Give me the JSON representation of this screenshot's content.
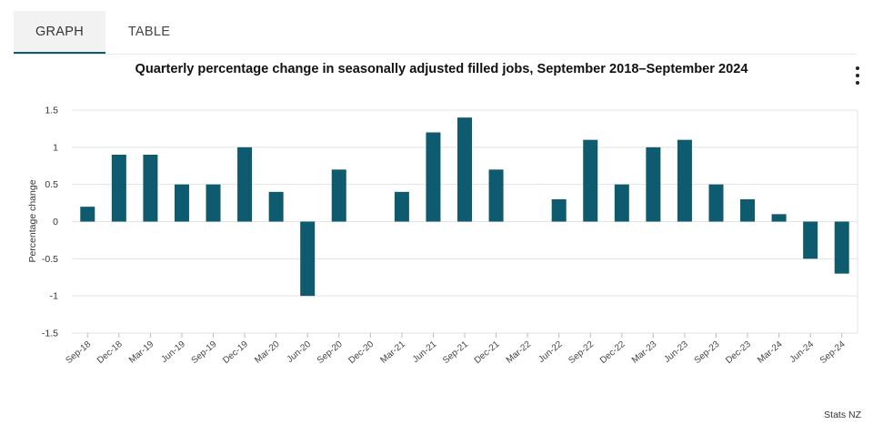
{
  "tabs": [
    {
      "label": "GRAPH",
      "active": true
    },
    {
      "label": "TABLE",
      "active": false
    }
  ],
  "menu_icon": "more-vertical-icon",
  "source": "Stats NZ",
  "colors": {
    "bar": "#0e5a6e",
    "grid": "#e3e3e3",
    "tab_underline": "#0e5a6e"
  },
  "chart_data": {
    "type": "bar",
    "title": "Quarterly percentage change in seasonally adjusted filled jobs, September 2018–September 2024",
    "xlabel": "",
    "ylabel": "Percentage change",
    "ylim": [
      -1.5,
      1.5
    ],
    "yticks": [
      "1.5",
      "1",
      "0.5",
      "0",
      "-0.5",
      "-1",
      "-1.5"
    ],
    "grid": true,
    "categories": [
      "Sep-18",
      "Dec-18",
      "Mar-19",
      "Jun-19",
      "Sep-19",
      "Dec-19",
      "Mar-20",
      "Jun-20",
      "Sep-20",
      "Dec-20",
      "Mar-21",
      "Jun-21",
      "Sep-21",
      "Dec-21",
      "Mar-22",
      "Jun-22",
      "Sep-22",
      "Dec-22",
      "Mar-23",
      "Jun-23",
      "Sep-23",
      "Dec-23",
      "Mar-24",
      "Jun-24",
      "Sep-24"
    ],
    "values": [
      0.2,
      0.9,
      0.9,
      0.5,
      0.5,
      1.0,
      0.4,
      -1.0,
      0.7,
      0.0,
      0.4,
      1.2,
      1.4,
      0.7,
      0.0,
      0.3,
      1.1,
      0.5,
      1.0,
      1.1,
      0.5,
      0.3,
      0.1,
      -0.5,
      -0.7
    ]
  }
}
